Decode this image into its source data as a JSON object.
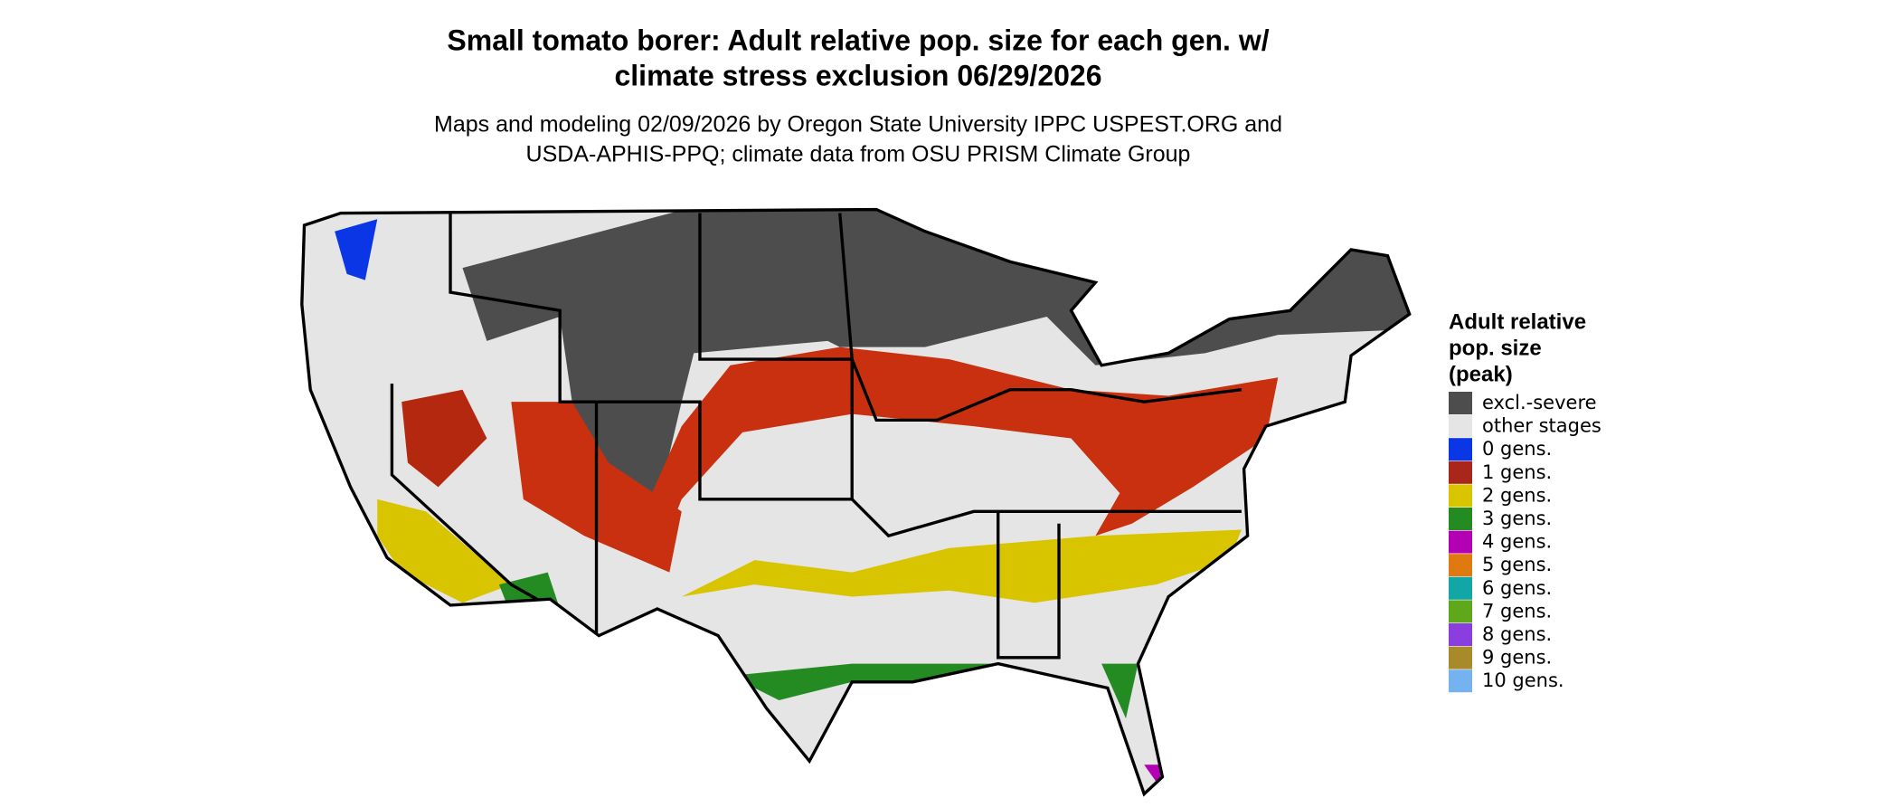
{
  "title": [
    "Small tomato borer: Adult relative pop. size for each gen. w/",
    "climate stress exclusion 06/29/2026"
  ],
  "subtitle": [
    "Maps and modeling 02/09/2026 by Oregon State University IPPC USPEST.ORG and",
    "USDA-APHIS-PPQ; climate data from OSU PRISM Climate Group"
  ],
  "legend": {
    "title": [
      "Adult relative",
      "pop. size",
      "(peak)"
    ],
    "items": [
      {
        "label": "excl.-severe",
        "color": "#4d4d4d"
      },
      {
        "label": "other stages",
        "color": "#e5e5e5"
      },
      {
        "label": "0 gens.",
        "color": "#0a36e6"
      },
      {
        "label": "1 gens.",
        "color": "#a8261a"
      },
      {
        "label": "2 gens.",
        "color": "#d9c400"
      },
      {
        "label": "3 gens.",
        "color": "#238b22"
      },
      {
        "label": "4 gens.",
        "color": "#b300b3"
      },
      {
        "label": "5 gens.",
        "color": "#de7a10"
      },
      {
        "label": "6 gens.",
        "color": "#12a6a6"
      },
      {
        "label": "7 gens.",
        "color": "#5fa81c"
      },
      {
        "label": "8 gens.",
        "color": "#8a3ee0"
      },
      {
        "label": "9 gens.",
        "color": "#a88a2a"
      },
      {
        "label": "10 gens.",
        "color": "#75b3f0"
      }
    ]
  }
}
